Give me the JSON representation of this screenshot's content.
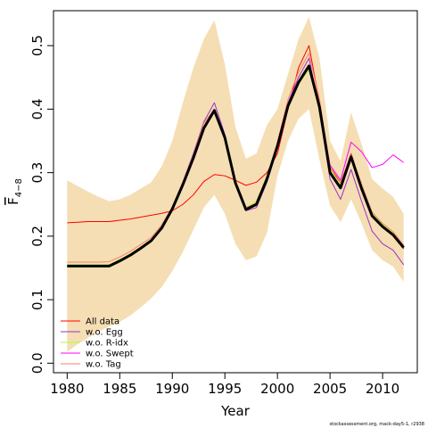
{
  "chart_data": {
    "type": "line",
    "xlabel": "Year",
    "ylabel_main": "F",
    "ylabel_sub": "4−8",
    "xlim": [
      1978.7,
      2013.3
    ],
    "ylim": [
      -0.015,
      0.555
    ],
    "xticks": [
      "1980",
      "1985",
      "1990",
      "1995",
      "2000",
      "2005",
      "2010"
    ],
    "yticks": [
      "0.0",
      "0.1",
      "0.2",
      "0.3",
      "0.4",
      "0.5"
    ],
    "grid": false,
    "legend_position": "bottom-left",
    "band_color": "#f5deb3",
    "x": [
      1980,
      1981,
      1982,
      1983,
      1984,
      1985,
      1986,
      1987,
      1988,
      1989,
      1990,
      1991,
      1992,
      1993,
      1994,
      1995,
      1996,
      1997,
      1998,
      1999,
      2000,
      2001,
      2002,
      2003,
      2004,
      2005,
      2006,
      2007,
      2008,
      2009,
      2010,
      2011,
      2012
    ],
    "band_upper": [
      0.288,
      0.279,
      0.27,
      0.262,
      0.255,
      0.258,
      0.265,
      0.275,
      0.285,
      0.31,
      0.35,
      0.41,
      0.465,
      0.51,
      0.54,
      0.47,
      0.372,
      0.322,
      0.33,
      0.375,
      0.4,
      0.455,
      0.51,
      0.545,
      0.48,
      0.35,
      0.318,
      0.395,
      0.345,
      0.29,
      0.275,
      0.262,
      0.235
    ],
    "band_lower": [
      0.018,
      0.03,
      0.04,
      0.05,
      0.058,
      0.065,
      0.075,
      0.088,
      0.102,
      0.12,
      0.145,
      0.175,
      0.21,
      0.245,
      0.265,
      0.235,
      0.188,
      0.162,
      0.168,
      0.205,
      0.295,
      0.35,
      0.385,
      0.4,
      0.32,
      0.248,
      0.222,
      0.258,
      0.22,
      0.178,
      0.162,
      0.152,
      0.128
    ],
    "series": [
      {
        "name": "All data",
        "color": "#ff0000",
        "values": [
          0.221,
          0.222,
          0.223,
          0.223,
          0.223,
          0.225,
          0.227,
          0.23,
          0.233,
          0.236,
          0.24,
          0.25,
          0.265,
          0.286,
          0.297,
          0.295,
          0.288,
          0.28,
          0.285,
          0.3,
          0.33,
          0.4,
          0.465,
          0.5,
          0.41,
          0.31,
          0.282,
          0.33,
          0.28,
          0.235,
          0.215,
          0.205,
          0.18
        ]
      },
      {
        "name": "w.o. Egg",
        "color": "#9932cc",
        "values": [
          0.154,
          0.154,
          0.154,
          0.154,
          0.155,
          0.162,
          0.171,
          0.182,
          0.194,
          0.215,
          0.245,
          0.285,
          0.33,
          0.38,
          0.41,
          0.36,
          0.282,
          0.24,
          0.245,
          0.285,
          0.34,
          0.41,
          0.45,
          0.48,
          0.4,
          0.29,
          0.258,
          0.305,
          0.255,
          0.208,
          0.188,
          0.178,
          0.155
        ]
      },
      {
        "name": "w.o. R-idx",
        "color": "#adff2f",
        "values": [
          0.155,
          0.155,
          0.155,
          0.155,
          0.155,
          0.163,
          0.172,
          0.183,
          0.195,
          0.216,
          0.246,
          0.283,
          0.325,
          0.37,
          0.395,
          0.355,
          0.288,
          0.245,
          0.255,
          0.295,
          0.345,
          0.405,
          0.44,
          0.462,
          0.405,
          0.305,
          0.282,
          0.322,
          0.278,
          0.236,
          0.218,
          0.205,
          0.185
        ]
      },
      {
        "name": "w.o. Swept",
        "color": "#ff00ff",
        "values": [
          0.153,
          0.153,
          0.153,
          0.153,
          0.153,
          0.161,
          0.17,
          0.181,
          0.193,
          0.213,
          0.243,
          0.281,
          0.323,
          0.37,
          0.397,
          0.355,
          0.285,
          0.243,
          0.252,
          0.292,
          0.342,
          0.405,
          0.442,
          0.468,
          0.405,
          0.312,
          0.288,
          0.348,
          0.333,
          0.308,
          0.313,
          0.328,
          0.316
        ]
      },
      {
        "name": "w.o. Tag",
        "color": "#fa8072",
        "values": [
          0.159,
          0.159,
          0.159,
          0.159,
          0.16,
          0.167,
          0.176,
          0.187,
          0.198,
          0.218,
          0.246,
          0.285,
          0.328,
          0.378,
          0.4,
          0.356,
          0.286,
          0.245,
          0.252,
          0.292,
          0.348,
          0.415,
          0.458,
          0.488,
          0.415,
          0.31,
          0.285,
          0.328,
          0.282,
          0.238,
          0.22,
          0.207,
          0.186
        ]
      },
      {
        "name": "",
        "color": "#000000",
        "values": [
          0.153,
          0.153,
          0.153,
          0.153,
          0.153,
          0.161,
          0.17,
          0.181,
          0.193,
          0.213,
          0.243,
          0.281,
          0.323,
          0.37,
          0.398,
          0.355,
          0.284,
          0.242,
          0.25,
          0.29,
          0.342,
          0.405,
          0.442,
          0.468,
          0.403,
          0.3,
          0.276,
          0.325,
          0.275,
          0.232,
          0.215,
          0.202,
          0.182
        ]
      }
    ]
  },
  "footnote": "stockassessment.org, mack-day5-1, r2938"
}
